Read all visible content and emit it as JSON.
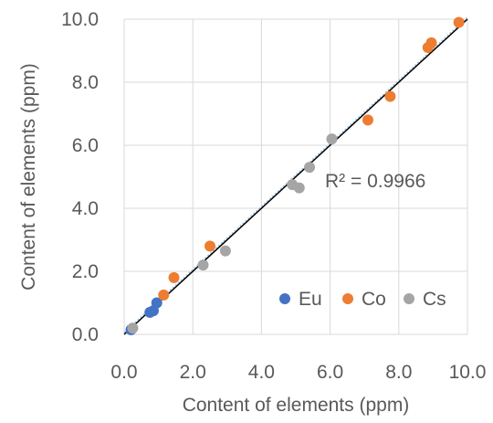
{
  "chart_data": {
    "type": "scatter",
    "xlabel": "Content of elements (ppm)",
    "ylabel": "Content of elements (ppm)",
    "xlim": [
      0,
      10
    ],
    "ylim": [
      0,
      10
    ],
    "x_ticks": [
      "0.0",
      "2.0",
      "4.0",
      "6.0",
      "8.0",
      "10.0"
    ],
    "y_ticks": [
      "0.0",
      "2.0",
      "4.0",
      "6.0",
      "8.0",
      "10.0"
    ],
    "grid": true,
    "legend_position": "bottom-right",
    "annotation": "R² = 0.9966",
    "trendline": {
      "x": [
        0,
        10
      ],
      "y": [
        0,
        10
      ],
      "color": "#000000"
    },
    "series": [
      {
        "name": "Eu",
        "color": "#4472C4",
        "points": [
          [
            0.2,
            0.15
          ],
          [
            0.75,
            0.7
          ],
          [
            0.85,
            0.75
          ],
          [
            0.95,
            1.0
          ]
        ]
      },
      {
        "name": "Co",
        "color": "#ED7D31",
        "points": [
          [
            1.15,
            1.25
          ],
          [
            1.45,
            1.8
          ],
          [
            2.5,
            2.8
          ],
          [
            7.1,
            6.8
          ],
          [
            7.75,
            7.55
          ],
          [
            8.85,
            9.1
          ],
          [
            8.95,
            9.25
          ],
          [
            9.75,
            9.9
          ]
        ]
      },
      {
        "name": "Cs",
        "color": "#A5A5A5",
        "points": [
          [
            0.25,
            0.2
          ],
          [
            2.3,
            2.2
          ],
          [
            2.95,
            2.65
          ],
          [
            4.9,
            4.75
          ],
          [
            5.1,
            4.65
          ],
          [
            5.4,
            5.3
          ],
          [
            6.05,
            6.2
          ]
        ]
      }
    ]
  }
}
